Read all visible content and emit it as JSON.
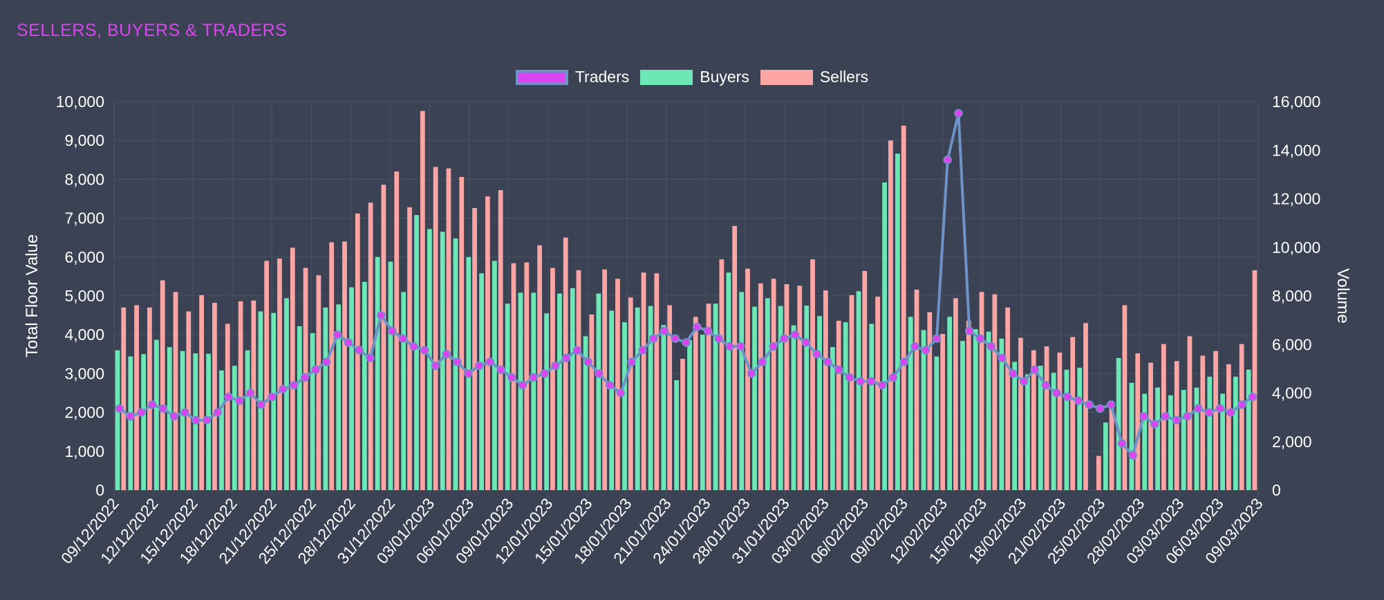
{
  "title": "SELLERS, BUYERS & TRADERS",
  "colors": {
    "background": "#3a4253",
    "grid": "#4a5265",
    "traders_fill": "#d946ef",
    "traders_border": "#6f93c6",
    "buyers": "#6ee7b7",
    "sellers": "#fca5a5",
    "title": "#d946ef"
  },
  "chart_data": {
    "type": "bar",
    "title": "SELLERS, BUYERS & TRADERS",
    "ylabel": "Total Floor Value",
    "y2label": "Volume",
    "ylim": [
      0,
      10000
    ],
    "y2lim": [
      0,
      16000
    ],
    "y_ticks": [
      "0",
      "1,000",
      "2,000",
      "3,000",
      "4,000",
      "5,000",
      "6,000",
      "7,000",
      "8,000",
      "9,000",
      "10,000"
    ],
    "y2_ticks": [
      "0",
      "2,000",
      "4,000",
      "6,000",
      "8,000",
      "10,000",
      "12,000",
      "14,000",
      "16,000"
    ],
    "x_tick_labels": [
      "09/12/2022",
      "12/12/2022",
      "15/12/2022",
      "18/12/2022",
      "21/12/2022",
      "25/12/2022",
      "28/12/2022",
      "31/12/2022",
      "03/01/2023",
      "06/01/2023",
      "09/01/2023",
      "12/01/2023",
      "15/01/2023",
      "18/01/2023",
      "21/01/2023",
      "24/01/2023",
      "28/01/2023",
      "31/01/2023",
      "03/02/2023",
      "06/02/2023",
      "09/02/2023",
      "12/02/2023",
      "15/02/2023",
      "18/02/2023",
      "21/02/2023",
      "25/02/2023",
      "28/02/2023",
      "03/03/2023",
      "06/03/2023",
      "09/03/2023"
    ],
    "legend_position": "top-center",
    "grid": true,
    "series": [
      {
        "name": "Traders",
        "type": "line",
        "axis": "left",
        "values": [
          2100,
          1900,
          2000,
          2200,
          2100,
          1900,
          2000,
          1800,
          1800,
          2000,
          2400,
          2300,
          2500,
          2200,
          2400,
          2600,
          2700,
          2900,
          3100,
          3300,
          4000,
          3800,
          3600,
          3400,
          4500,
          4100,
          3900,
          3700,
          3600,
          3200,
          3500,
          3300,
          3000,
          3200,
          3300,
          3100,
          2900,
          2700,
          2900,
          3000,
          3200,
          3400,
          3600,
          3300,
          3000,
          2700,
          2500,
          3300,
          3600,
          3900,
          4100,
          3900,
          3800,
          4200,
          4100,
          3900,
          3700,
          3700,
          3000,
          3300,
          3700,
          3900,
          4000,
          3800,
          3500,
          3300,
          3100,
          2900,
          2800,
          2800,
          2700,
          2900,
          3300,
          3700,
          3600,
          3900,
          8500,
          9700,
          4100,
          3900,
          3700,
          3400,
          3000,
          2800,
          3100,
          2700,
          2500,
          2400,
          2300,
          2200,
          2100,
          2200,
          1200,
          900,
          1900,
          1700,
          1900,
          1800,
          1900,
          2100,
          2000,
          2100,
          2000,
          2200,
          2400
        ]
      },
      {
        "name": "Buyers",
        "type": "bar",
        "axis": "left",
        "values": [
          3600,
          3440,
          3500,
          3870,
          3680,
          3580,
          3520,
          3510,
          3080,
          3200,
          3600,
          4600,
          4560,
          4940,
          4220,
          4040,
          4700,
          4780,
          5220,
          5360,
          6000,
          5880,
          5100,
          7080,
          6720,
          6650,
          6480,
          6000,
          5580,
          5900,
          4800,
          5080,
          5080,
          4550,
          5060,
          5200,
          3960,
          5060,
          4620,
          4320,
          4700,
          4740,
          4250,
          2830,
          3860,
          4000,
          4800,
          5600,
          5100,
          4720,
          4940,
          4740,
          4240,
          4750,
          4480,
          3680,
          4320,
          5120,
          4280,
          7920,
          8660,
          4460,
          4120,
          3440,
          4460,
          3840,
          4140,
          4080,
          3900,
          3300,
          2980,
          3200,
          3020,
          3100,
          3150,
          0,
          1740,
          3400,
          2760,
          2480,
          2640,
          2440,
          2580,
          2640,
          2920,
          2480,
          2920,
          3100
        ]
      },
      {
        "name": "Sellers",
        "type": "bar",
        "axis": "left",
        "values": [
          4700,
          4760,
          4700,
          5400,
          5100,
          4600,
          5020,
          4820,
          4280,
          4860,
          4880,
          5900,
          5960,
          6240,
          5720,
          5530,
          6380,
          6400,
          7120,
          7400,
          7860,
          8200,
          7280,
          9760,
          8320,
          8280,
          8060,
          7260,
          7560,
          7720,
          5840,
          5860,
          6300,
          5720,
          6500,
          5660,
          4520,
          5680,
          5440,
          4960,
          5600,
          5580,
          4760,
          3380,
          4460,
          4800,
          5940,
          6800,
          5700,
          5320,
          5440,
          5300,
          5260,
          5940,
          5140,
          4360,
          5020,
          5640,
          4980,
          9000,
          9380,
          5160,
          4580,
          4020,
          4940,
          4360,
          5100,
          5040,
          4700,
          3920,
          3600,
          3700,
          3540,
          3940,
          4300,
          880,
          2200,
          4760,
          3520,
          3280,
          3760,
          3320,
          3960,
          3460,
          3580,
          3240,
          3760,
          5660
        ]
      }
    ]
  }
}
